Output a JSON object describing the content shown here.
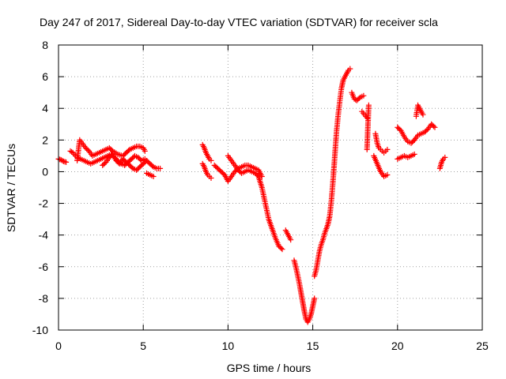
{
  "chart_data": {
    "type": "scatter",
    "title": "Day 247 of 2017, Sidereal Day-to-day VTEC variation (SDTVAR) for receiver scla",
    "xlabel": "GPS time / hours",
    "ylabel": "SDTVAR / TECUs",
    "xlim": [
      0,
      25
    ],
    "ylim": [
      -10,
      8
    ],
    "x_ticks": [
      "0",
      "5",
      "10",
      "15",
      "20",
      "25"
    ],
    "y_ticks": [
      "-10",
      "-8",
      "-6",
      "-4",
      "-2",
      "0",
      "2",
      "4",
      "6",
      "8"
    ],
    "grid": true,
    "marker": "+",
    "color": "#ff0000",
    "segments": [
      {
        "x": [
          0.0,
          0.15,
          0.3,
          0.45
        ],
        "y": [
          0.8,
          0.75,
          0.65,
          0.6
        ]
      },
      {
        "x": [
          0.7,
          0.85,
          1.0
        ],
        "y": [
          1.3,
          1.2,
          1.0
        ]
      },
      {
        "x": [
          1.1,
          1.25,
          1.4,
          1.6,
          1.8,
          2.0,
          2.2,
          2.4,
          2.6,
          2.8,
          3.0,
          3.2,
          3.5,
          3.8,
          4.0,
          4.2,
          4.4,
          4.6,
          4.8,
          5.0,
          5.1
        ],
        "y": [
          0.7,
          2.0,
          1.8,
          1.5,
          1.3,
          1.0,
          1.1,
          1.2,
          1.3,
          1.4,
          1.5,
          1.3,
          1.1,
          1.0,
          1.2,
          1.4,
          1.5,
          1.6,
          1.6,
          1.5,
          1.3
        ]
      },
      {
        "x": [
          1.1,
          1.3,
          1.5,
          1.7,
          1.9,
          2.1,
          2.3,
          2.5,
          2.7,
          2.9,
          3.1,
          3.3,
          3.5,
          3.7,
          3.9,
          4.1,
          4.3,
          4.5,
          4.7,
          4.9,
          5.1
        ],
        "y": [
          0.9,
          0.8,
          0.7,
          0.6,
          0.5,
          0.6,
          0.7,
          0.8,
          0.9,
          1.0,
          1.1,
          0.9,
          0.7,
          0.5,
          0.4,
          0.6,
          0.8,
          1.0,
          0.9,
          0.7,
          0.8
        ]
      },
      {
        "x": [
          2.6,
          2.8,
          3.0,
          3.2,
          3.4,
          3.6,
          3.8,
          4.0,
          4.2,
          4.4,
          4.6,
          4.8,
          5.0,
          5.2,
          5.4,
          5.6,
          5.8,
          6.0
        ],
        "y": [
          0.4,
          0.6,
          0.9,
          1.1,
          0.7,
          0.5,
          0.8,
          0.6,
          0.4,
          0.2,
          0.1,
          0.3,
          0.5,
          0.7,
          0.5,
          0.3,
          0.2,
          0.2
        ]
      },
      {
        "x": [
          5.2,
          5.4,
          5.6
        ],
        "y": [
          -0.1,
          -0.2,
          -0.3
        ]
      },
      {
        "x": [
          8.5,
          8.6,
          8.7,
          8.8,
          8.9,
          9.0
        ],
        "y": [
          1.7,
          1.5,
          1.2,
          1.0,
          0.8,
          0.7
        ]
      },
      {
        "x": [
          8.5,
          8.6,
          8.7,
          8.8,
          8.9,
          9.0
        ],
        "y": [
          0.5,
          0.3,
          0.0,
          -0.2,
          -0.3,
          -0.4
        ]
      },
      {
        "x": [
          9.2,
          9.4,
          9.6,
          9.8,
          10.0,
          10.2,
          10.4,
          10.6,
          10.8,
          11.0,
          11.2,
          11.4,
          11.6,
          11.8,
          12.0
        ],
        "y": [
          0.4,
          0.2,
          0.0,
          -0.2,
          -0.6,
          -0.3,
          0.0,
          0.2,
          0.3,
          0.4,
          0.4,
          0.3,
          0.2,
          0.1,
          -0.3
        ]
      },
      {
        "x": [
          10.0,
          10.2,
          10.4,
          10.6,
          10.8,
          11.0,
          11.2,
          11.4,
          11.6,
          11.8,
          12.0,
          12.2,
          12.4,
          12.6,
          12.8,
          13.0,
          13.2
        ],
        "y": [
          1.0,
          0.7,
          0.4,
          0.1,
          -0.1,
          0.0,
          0.1,
          0.0,
          -0.1,
          -0.3,
          -1.0,
          -2.0,
          -3.0,
          -3.6,
          -4.2,
          -4.7,
          -4.9
        ]
      },
      {
        "x": [
          13.4,
          13.55,
          13.7
        ],
        "y": [
          -3.7,
          -4.0,
          -4.3
        ]
      },
      {
        "x": [
          13.9,
          14.0,
          14.1,
          14.2,
          14.3,
          14.4,
          14.5,
          14.6,
          14.7,
          14.8,
          14.9,
          15.0,
          15.1
        ],
        "y": [
          -5.6,
          -6.0,
          -6.5,
          -7.0,
          -7.6,
          -8.2,
          -8.8,
          -9.3,
          -9.5,
          -9.3,
          -9.0,
          -8.5,
          -8.0
        ]
      },
      {
        "x": [
          15.1,
          15.2,
          15.3,
          15.4,
          15.5,
          15.6,
          15.7,
          15.8,
          15.9,
          16.0,
          16.1,
          16.2,
          16.3,
          16.4,
          16.5,
          16.6,
          16.7,
          16.8,
          16.9,
          17.0,
          17.1,
          17.2
        ],
        "y": [
          -6.6,
          -6.2,
          -5.6,
          -5.0,
          -4.6,
          -4.3,
          -3.9,
          -3.6,
          -3.3,
          -2.8,
          -1.8,
          -0.5,
          1.0,
          2.5,
          3.6,
          4.5,
          5.3,
          5.8,
          6.0,
          6.2,
          6.4,
          6.5
        ]
      },
      {
        "x": [
          17.3,
          17.45,
          17.6,
          17.8,
          18.0
        ],
        "y": [
          5.0,
          4.6,
          4.5,
          4.7,
          4.8
        ]
      },
      {
        "x": [
          17.9,
          18.05,
          18.2
        ],
        "y": [
          3.8,
          3.6,
          3.4
        ]
      },
      {
        "x": [
          18.2,
          18.3
        ],
        "y": [
          1.4,
          4.2
        ]
      },
      {
        "x": [
          18.7,
          18.8,
          18.9,
          19.0,
          19.1,
          19.2,
          19.3,
          19.4
        ],
        "y": [
          2.4,
          1.8,
          1.5,
          1.4,
          1.3,
          1.2,
          1.3,
          1.4
        ]
      },
      {
        "x": [
          18.6,
          18.8,
          19.0,
          19.2,
          19.4
        ],
        "y": [
          1.0,
          0.5,
          0.0,
          -0.3,
          -0.2
        ]
      },
      {
        "x": [
          20.0,
          20.2,
          20.4,
          20.6,
          20.8,
          21.0
        ],
        "y": [
          2.8,
          2.6,
          2.2,
          1.9,
          1.8,
          2.0
        ]
      },
      {
        "x": [
          20.0,
          20.2,
          20.4,
          20.6,
          20.8,
          21.0
        ],
        "y": [
          0.8,
          0.9,
          1.0,
          0.9,
          1.0,
          1.1
        ]
      },
      {
        "x": [
          21.0,
          21.2,
          21.4,
          21.6,
          21.8,
          22.0,
          22.2
        ],
        "y": [
          2.0,
          2.3,
          2.4,
          2.5,
          2.7,
          3.0,
          2.8
        ]
      },
      {
        "x": [
          21.1,
          21.2,
          21.3,
          21.4,
          21.5
        ],
        "y": [
          3.5,
          4.2,
          4.0,
          3.8,
          3.6
        ]
      },
      {
        "x": [
          22.5,
          22.6,
          22.7,
          22.8
        ],
        "y": [
          0.2,
          0.6,
          0.8,
          0.9
        ]
      }
    ]
  }
}
